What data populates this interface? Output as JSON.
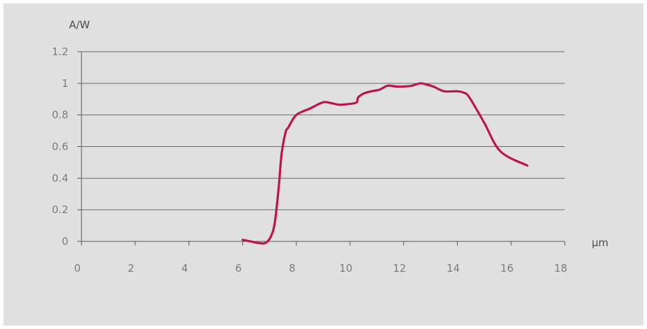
{
  "chart_data": {
    "type": "line",
    "title": "",
    "xlabel": "µm",
    "ylabel": "A/W",
    "xlim": [
      0,
      18
    ],
    "ylim": [
      0,
      1.2
    ],
    "x_ticks": [
      0,
      2,
      4,
      6,
      8,
      10,
      12,
      14,
      16,
      18
    ],
    "y_ticks": [
      0,
      0.2,
      0.4,
      0.6,
      0.8,
      1,
      1.2
    ],
    "x_tick_labels": [
      "0",
      "2",
      "4",
      "6",
      "8",
      "10",
      "12",
      "14",
      "16",
      "18"
    ],
    "y_tick_labels": [
      "0",
      "0.2",
      "0.4",
      "0.6",
      "0.8",
      "1",
      "1.2"
    ],
    "grid": "horizontal",
    "series": [
      {
        "color": "#c0134a",
        "x": [
          6.0,
          6.3,
          6.6,
          6.85,
          7.05,
          7.2,
          7.35,
          7.45,
          7.6,
          7.7,
          8.0,
          8.5,
          9.0,
          9.3,
          9.6,
          10.0,
          10.25,
          10.3,
          10.5,
          10.8,
          11.1,
          11.4,
          11.7,
          12.0,
          12.3,
          12.6,
          12.8,
          13.1,
          13.5,
          14.0,
          14.25,
          14.45,
          15.0,
          15.6,
          16.6
        ],
        "y": [
          0.01,
          0.0,
          -0.01,
          -0.01,
          0.03,
          0.12,
          0.35,
          0.55,
          0.69,
          0.72,
          0.8,
          0.84,
          0.88,
          0.875,
          0.865,
          0.87,
          0.88,
          0.91,
          0.935,
          0.95,
          0.96,
          0.985,
          0.98,
          0.98,
          0.985,
          1.0,
          0.995,
          0.98,
          0.95,
          0.95,
          0.94,
          0.91,
          0.75,
          0.57,
          0.48
        ]
      }
    ]
  }
}
